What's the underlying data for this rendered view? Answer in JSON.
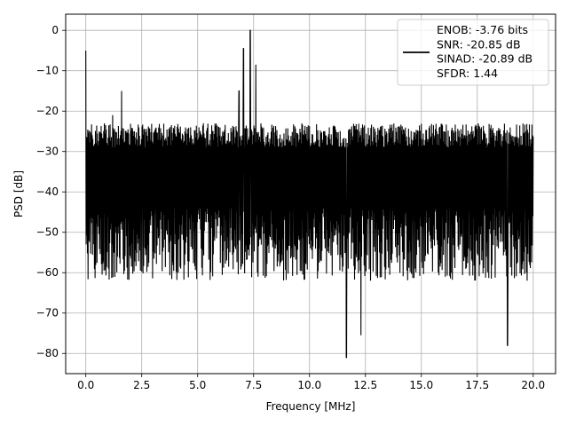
{
  "chart_data": {
    "type": "line",
    "title": "",
    "xlabel": "Frequency [MHz]",
    "ylabel": "PSD [dB]",
    "xlim": [
      -0.9,
      21.0
    ],
    "ylim": [
      -85,
      4
    ],
    "xticks": [
      0.0,
      2.5,
      5.0,
      7.5,
      10.0,
      12.5,
      15.0,
      17.5,
      20.0
    ],
    "xtick_labels": [
      "0.0",
      "2.5",
      "5.0",
      "7.5",
      "10.0",
      "12.5",
      "15.0",
      "17.5",
      "20.0"
    ],
    "yticks": [
      0,
      -10,
      -20,
      -30,
      -40,
      -50,
      -60,
      -70,
      -80
    ],
    "ytick_labels": [
      "0",
      "−10",
      "−20",
      "−30",
      "−40",
      "−50",
      "−60",
      "−70",
      "−80"
    ],
    "grid": true,
    "legend_position": "top-right",
    "series": [
      {
        "color": "#000000",
        "description": "noise-like PSD trace, 0 to 20 MHz",
        "noise_floor_upper_db": -23,
        "noise_floor_lower_db": -58,
        "peaks": [
          {
            "x": 0.0,
            "y": -5
          },
          {
            "x": 1.2,
            "y": -21
          },
          {
            "x": 1.6,
            "y": -15
          },
          {
            "x": 6.85,
            "y": -15
          },
          {
            "x": 7.05,
            "y": -4.5
          },
          {
            "x": 7.35,
            "y": 0
          },
          {
            "x": 7.6,
            "y": -8.5
          },
          {
            "x": 11.65,
            "y": -81
          },
          {
            "x": 12.3,
            "y": -75.5
          },
          {
            "x": 18.85,
            "y": -78
          }
        ]
      }
    ],
    "legend": {
      "lines": [
        "ENOB: -3.76 bits",
        "SNR: -20.85 dB",
        "SINAD: -20.89 dB",
        "SFDR: 1.44"
      ]
    }
  }
}
